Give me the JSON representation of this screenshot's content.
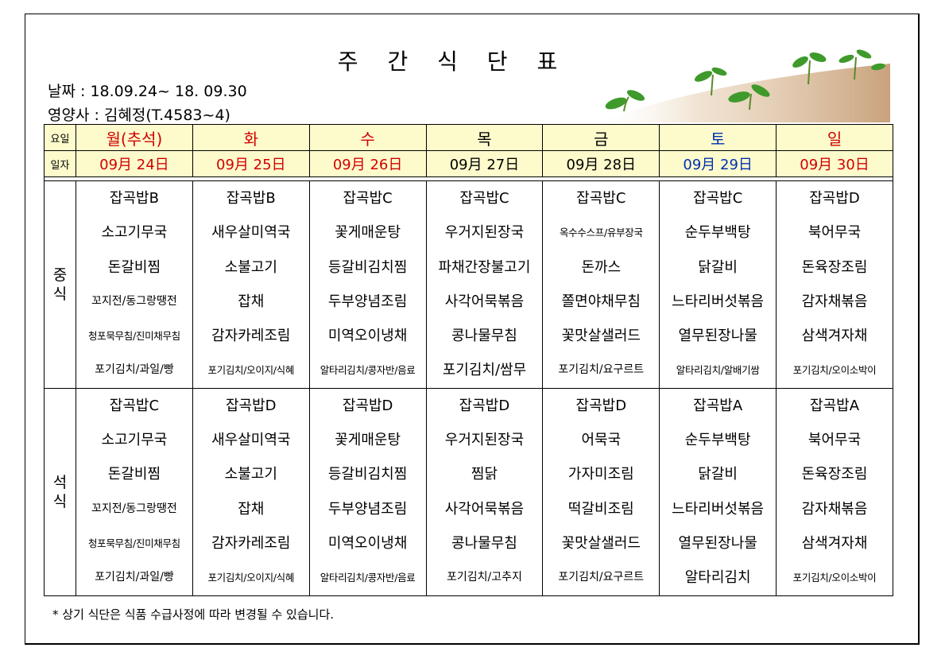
{
  "title": "주 간 식 단 표",
  "date_line": "날짜 : 18.09.24~ 18. 09.30",
  "nutritionist_line": "영양사 : 김혜정(T.4583~4)",
  "header": {
    "day_label": "요일",
    "date_label": "일자",
    "days": [
      "월(추석)",
      "화",
      "수",
      "목",
      "금",
      "토",
      "일"
    ],
    "dates": [
      "09月 24日",
      "09月 25日",
      "09月 26日",
      "09月 27日",
      "09月 28日",
      "09月 29日",
      "09月 30日"
    ]
  },
  "colors": {
    "red": "#d10000",
    "blue": "#0030b0",
    "black": "#000000",
    "header_bg": "#fdfbcc"
  },
  "lunch": {
    "label": "중\n식",
    "columns": [
      [
        "잡곡밥B",
        "소고기무국",
        "돈갈비찜",
        "꼬지전/동그랑땡전",
        "청포묵무침/진미채무침",
        "포기김치/과일/빵"
      ],
      [
        "잡곡밥B",
        "새우살미역국",
        "소불고기",
        "잡채",
        "감자카레조림",
        "포기김치/오이지/식혜"
      ],
      [
        "잡곡밥C",
        "꽃게매운탕",
        "등갈비김치찜",
        "두부양념조림",
        "미역오이냉채",
        "알타리김치/콩자반/음료"
      ],
      [
        "잡곡밥C",
        "우거지된장국",
        "파채간장불고기",
        "사각어묵볶음",
        "콩나물무침",
        "포기김치/쌈무"
      ],
      [
        "잡곡밥C",
        "옥수수스프/유부장국",
        "돈까스",
        "쫄면야채무침",
        "꽃맛살샐러드",
        "포기김치/요구르트"
      ],
      [
        "잡곡밥C",
        "순두부백탕",
        "닭갈비",
        "느타리버섯볶음",
        "열무된장나물",
        "알타리김치/알배기쌈"
      ],
      [
        "잡곡밥D",
        "북어무국",
        "돈육장조림",
        "감자채볶음",
        "삼색겨자채",
        "포기김치/오이소박이"
      ]
    ]
  },
  "dinner": {
    "label": "석\n식",
    "columns": [
      [
        "잡곡밥C",
        "소고기무국",
        "돈갈비찜",
        "꼬지전/동그랑땡전",
        "청포묵무침/진미채무침",
        "포기김치/과일/빵"
      ],
      [
        "잡곡밥D",
        "새우살미역국",
        "소불고기",
        "잡채",
        "감자카레조림",
        "포기김치/오이지/식혜"
      ],
      [
        "잡곡밥D",
        "꽃게매운탕",
        "등갈비김치찜",
        "두부양념조림",
        "미역오이냉채",
        "알타리김치/콩자반/음료"
      ],
      [
        "잡곡밥D",
        "우거지된장국",
        "찜닭",
        "사각어묵볶음",
        "콩나물무침",
        "포기김치/고추지"
      ],
      [
        "잡곡밥D",
        "어묵국",
        "가자미조림",
        "떡갈비조림",
        "꽃맛살샐러드",
        "포기김치/요구르트"
      ],
      [
        "잡곡밥A",
        "순두부백탕",
        "닭갈비",
        "느타리버섯볶음",
        "열무된장나물",
        "알타리김치"
      ],
      [
        "잡곡밥A",
        "북어무국",
        "돈육장조림",
        "감자채볶음",
        "삼색겨자채",
        "포기김치/오이소박이"
      ]
    ]
  },
  "footnote": "* 상기 식단은 식품 수급사정에 따라 변경될 수 있습니다."
}
